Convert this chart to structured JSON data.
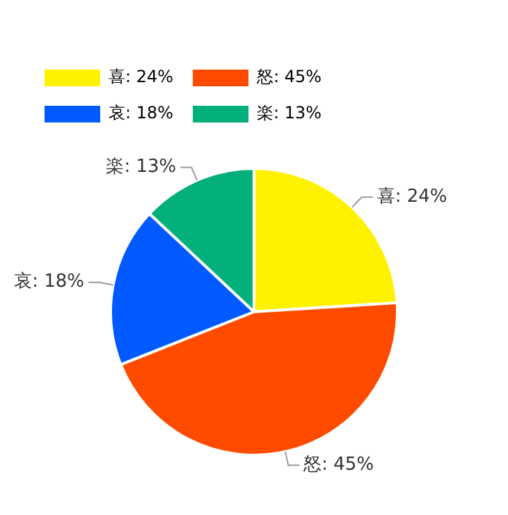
{
  "chart_data": {
    "type": "pie",
    "categories": [
      "喜",
      "怒",
      "哀",
      "楽"
    ],
    "values": [
      24,
      45,
      18,
      13
    ],
    "value_labels": [
      "24%",
      "45%",
      "18%",
      "13%"
    ],
    "colors": [
      "#fff200",
      "#ff4b00",
      "#005aff",
      "#03af7a"
    ],
    "legend": "top left"
  }
}
